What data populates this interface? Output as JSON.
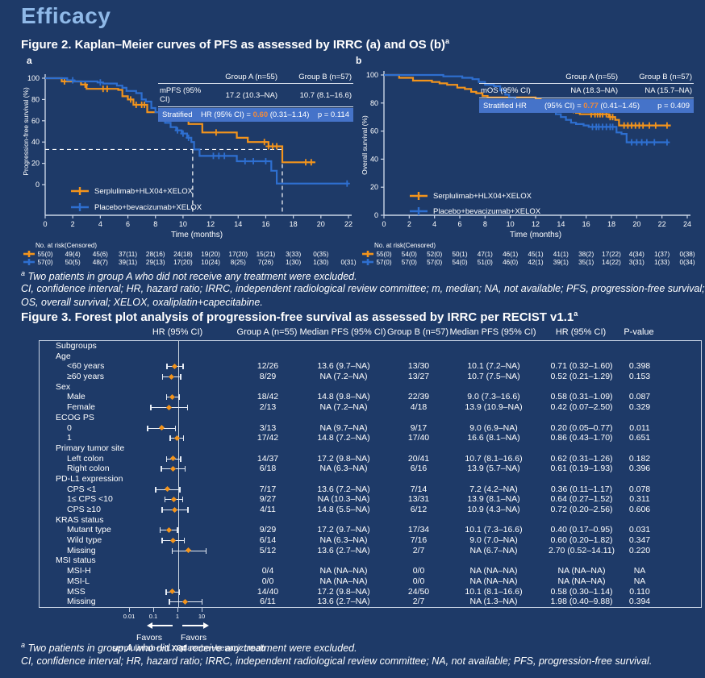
{
  "page": {
    "title": "Efficacy"
  },
  "figure2": {
    "heading": "Figure 2. Kaplan–Meier curves of PFS as assessed by IRRC (a) and OS (b)",
    "heading_sup": "a",
    "panels": [
      {
        "letter": "a",
        "stats": {
          "header_a": "Group A (n=55)",
          "header_b": "Group B (n=57)",
          "label": "mPFS (95% CI)",
          "value_a": "17.2 (10.3–NA)",
          "value_b": "10.7 (8.1–16.6)",
          "strat_prefix": "Stratified",
          "strat_mid": "HR (95% CI) =",
          "hr": "0.60",
          "ci": "(0.31–1.14)",
          "p": "p = 0.114"
        }
      },
      {
        "letter": "b",
        "stats": {
          "header_a": "Group A (n=55)",
          "header_b": "Group B (n=57)",
          "label": "mOS (95% CI)",
          "value_a": "NA (18.3–NA)",
          "value_b": "NA (15.7–NA)",
          "strat_prefix": "Stratified HR",
          "strat_mid": "(95% CI) =",
          "hr": "0.77",
          "ci": "(0.41–1.45)",
          "p": "p = 0.409"
        }
      }
    ],
    "footnote1_sup": "a",
    "footnote1": " Two patients in group A who did not receive any treatment were excluded.",
    "footnote2": "CI, confidence interval; HR, hazard ratio; IRRC, independent radiological review committee; m, median; NA, not available; PFS, progression-free survival;",
    "footnote3": "OS, overall survival; XELOX, oxaliplatin+capecitabine."
  },
  "figure3": {
    "heading": "Figure 3. Forest plot analysis of progression-free survival as assessed by IRRC per RECIST v1.1",
    "heading_sup": "a",
    "columns": [
      "HR (95% CI)",
      "Group A (n=55)",
      "Median PFS (95% CI)",
      "Group B (n=57)",
      "Median PFS (95% CI)",
      "HR (95% CI)",
      "P-value"
    ],
    "favors_left": [
      "Favors",
      "serplulimab+HLX04"
    ],
    "favors_right": [
      "Favors",
      "placebo+bevacizumab"
    ],
    "footnote1_sup": "a",
    "footnote1": " Two patients in group A who did not receive any treatment were excluded.",
    "footnote2": "CI, confidence interval; HR, hazard ratio; IRRC, independent radiological review committee; NA, not available; PFS, progression-free survival."
  },
  "chart_data": [
    {
      "id": "km_pfs",
      "type": "line",
      "subtype": "kaplan-meier-step",
      "title": "a",
      "ylabel": "Progression-free survival (%)",
      "xlabel": "Time (months)",
      "xlim": [
        0,
        22
      ],
      "ylim": [
        0,
        100
      ],
      "xticks": [
        0,
        2,
        4,
        6,
        8,
        10,
        12,
        14,
        16,
        18,
        20,
        22
      ],
      "yticks": [
        0,
        20,
        40,
        60,
        80,
        100
      ],
      "medians": {
        "y": 33,
        "x_max": 17.2,
        "x_vertical": [
          10.7,
          17.2
        ]
      },
      "series": [
        {
          "name": "Serplulimab+HLX04+XELOX",
          "color": "#f3941c",
          "points": [
            [
              0,
              100
            ],
            [
              1.2,
              97
            ],
            [
              2.6,
              94
            ],
            [
              3.0,
              90
            ],
            [
              5.3,
              89
            ],
            [
              5.6,
              83
            ],
            [
              6.0,
              80
            ],
            [
              6.4,
              75
            ],
            [
              7.4,
              68
            ],
            [
              9.8,
              62
            ],
            [
              10.4,
              57
            ],
            [
              11.4,
              49
            ],
            [
              13.9,
              44
            ],
            [
              14.7,
              40
            ],
            [
              16.2,
              36
            ],
            [
              17.2,
              21
            ],
            [
              19.6,
              21
            ]
          ],
          "censors": [
            1.4,
            2.9,
            4.2,
            4.5,
            6.2,
            6.6,
            7.0,
            7.2,
            8.4,
            8.7,
            9.0,
            9.3,
            12.4,
            15.9,
            16.2,
            16.5,
            16.8,
            18.9,
            19.3
          ]
        },
        {
          "name": "Placebo+bevacizumab+XELOX",
          "color": "#2e6fd0",
          "points": [
            [
              0,
              100
            ],
            [
              1.6,
              98
            ],
            [
              2.1,
              97
            ],
            [
              3.8,
              96
            ],
            [
              4.2,
              95
            ],
            [
              5.2,
              93
            ],
            [
              5.6,
              91
            ],
            [
              5.9,
              88
            ],
            [
              6.6,
              86
            ],
            [
              7.0,
              80
            ],
            [
              7.3,
              78
            ],
            [
              7.7,
              72
            ],
            [
              8.0,
              68
            ],
            [
              8.3,
              62
            ],
            [
              8.7,
              58
            ],
            [
              9.1,
              54
            ],
            [
              9.5,
              51
            ],
            [
              9.9,
              48
            ],
            [
              10.3,
              44
            ],
            [
              10.6,
              40
            ],
            [
              10.8,
              33
            ],
            [
              11.2,
              27
            ],
            [
              13.9,
              22
            ],
            [
              16.4,
              13
            ],
            [
              16.8,
              1
            ],
            [
              22.0,
              1
            ]
          ],
          "censors": [
            2.0,
            4.0,
            8.6,
            9.6,
            10.0,
            10.4,
            12.2,
            12.6,
            13.0,
            14.5,
            15.1,
            16.0,
            21.9
          ]
        }
      ],
      "risk_table": {
        "label": "No. at risk(Censored)",
        "rows": [
          {
            "color": "#f3941c",
            "values": [
              "55(0)",
              "49(4)",
              "45(6)",
              "37(11)",
              "28(16)",
              "24(18)",
              "19(20)",
              "17(20)",
              "15(21)",
              "3(33)",
              "0(35)"
            ]
          },
          {
            "color": "#2e6fd0",
            "values": [
              "57(0)",
              "50(5)",
              "48(7)",
              "39(11)",
              "29(13)",
              "17(20)",
              "10(24)",
              "8(25)",
              "7(26)",
              "1(30)",
              "1(30)",
              "0(31)"
            ]
          }
        ]
      }
    },
    {
      "id": "km_os",
      "type": "line",
      "subtype": "kaplan-meier-step",
      "title": "b",
      "ylabel": "Overall survival  (%)",
      "xlabel": "Time (months)",
      "xlim": [
        0,
        24
      ],
      "ylim": [
        0,
        100
      ],
      "xticks": [
        0,
        2,
        4,
        6,
        8,
        10,
        12,
        14,
        16,
        18,
        20,
        22,
        24
      ],
      "yticks": [
        0,
        20,
        40,
        60,
        80,
        100
      ],
      "medians": null,
      "series": [
        {
          "name": "Serplulimab+HLX04+XELOX",
          "color": "#f3941c",
          "points": [
            [
              0,
              100
            ],
            [
              1.2,
              98
            ],
            [
              2.3,
              96
            ],
            [
              3.8,
              95
            ],
            [
              4.4,
              94
            ],
            [
              5.0,
              93
            ],
            [
              5.8,
              91
            ],
            [
              6.4,
              90
            ],
            [
              6.9,
              88
            ],
            [
              7.3,
              87
            ],
            [
              7.8,
              85
            ],
            [
              8.2,
              84
            ],
            [
              12.0,
              83
            ],
            [
              12.4,
              80
            ],
            [
              12.8,
              78
            ],
            [
              13.2,
              76
            ],
            [
              14.9,
              75
            ],
            [
              15.2,
              73
            ],
            [
              15.5,
              72
            ],
            [
              17.8,
              70
            ],
            [
              18.3,
              68
            ],
            [
              18.6,
              64
            ],
            [
              22.7,
              64
            ]
          ],
          "censors": [
            14.3,
            15.0,
            16.4,
            16.7,
            16.9,
            17.1,
            17.3,
            17.6,
            17.9,
            18.1,
            19.0,
            19.3,
            19.6,
            19.9,
            20.2,
            20.5,
            21.0,
            21.5,
            22.4
          ]
        },
        {
          "name": "Placebo+bevacizumab+XELOX",
          "color": "#2e6fd0",
          "points": [
            [
              0,
              100
            ],
            [
              4.7,
              99
            ],
            [
              6.2,
              98
            ],
            [
              7.0,
              97
            ],
            [
              7.5,
              95
            ],
            [
              8.0,
              93
            ],
            [
              8.7,
              92
            ],
            [
              9.2,
              89
            ],
            [
              9.6,
              86
            ],
            [
              9.9,
              84
            ],
            [
              10.4,
              82
            ],
            [
              11.0,
              80
            ],
            [
              11.6,
              78
            ],
            [
              12.1,
              77
            ],
            [
              12.6,
              76
            ],
            [
              13.1,
              74
            ],
            [
              13.6,
              72
            ],
            [
              14.0,
              70
            ],
            [
              14.4,
              68
            ],
            [
              14.8,
              66
            ],
            [
              15.2,
              65
            ],
            [
              15.8,
              64
            ],
            [
              16.2,
              63
            ],
            [
              18.4,
              59
            ],
            [
              18.8,
              58
            ],
            [
              19.2,
              52
            ],
            [
              22.5,
              52
            ]
          ],
          "censors": [
            16.5,
            16.8,
            17.0,
            17.3,
            17.6,
            17.9,
            18.1,
            19.6,
            20.0,
            20.4,
            20.8,
            21.4,
            22.4
          ]
        }
      ],
      "risk_table": {
        "label": "No. at risk(Censored)",
        "rows": [
          {
            "color": "#f3941c",
            "values": [
              "55(0)",
              "54(0)",
              "52(0)",
              "50(1)",
              "47(1)",
              "46(1)",
              "45(1)",
              "41(1)",
              "38(2)",
              "17(22)",
              "4(34)",
              "1(37)",
              "0(38)"
            ]
          },
          {
            "color": "#2e6fd0",
            "values": [
              "57(0)",
              "57(0)",
              "57(0)",
              "54(0)",
              "51(0)",
              "46(0)",
              "42(1)",
              "39(1)",
              "35(1)",
              "14(22)",
              "3(31)",
              "1(33)",
              "0(34)"
            ]
          }
        ]
      }
    },
    {
      "id": "forest_pfs",
      "type": "scatter",
      "subtype": "forest-plot",
      "xscale": "log",
      "ticks": [
        0.01,
        0.1,
        1,
        10
      ],
      "rows": [
        {
          "label": "Subgroups",
          "header": true
        },
        {
          "label": "Age",
          "header": true
        },
        {
          "label": "<60 years",
          "ga": "12/26",
          "ma": "13.6 (9.7–NA)",
          "gb": "13/30",
          "mb": "10.1 (7.2–NA)",
          "hr_text": "0.71 (0.32–1.60)",
          "p": "0.398",
          "hr": 0.71,
          "lo": 0.32,
          "hi": 1.6
        },
        {
          "label": "≥60 years",
          "ga": "8/29",
          "ma": "NA (7.2–NA)",
          "gb": "13/27",
          "mb": "10.7 (7.5–NA)",
          "hr_text": "0.52 (0.21–1.29)",
          "p": "0.153",
          "hr": 0.52,
          "lo": 0.21,
          "hi": 1.29
        },
        {
          "label": "Sex",
          "header": true
        },
        {
          "label": "Male",
          "ga": "18/42",
          "ma": "14.8 (9.8–NA)",
          "gb": "22/39",
          "mb": "9.0 (7.3–16.6)",
          "hr_text": "0.58 (0.31–1.09)",
          "p": "0.087",
          "hr": 0.58,
          "lo": 0.31,
          "hi": 1.09
        },
        {
          "label": "Female",
          "ga": "2/13",
          "ma": "NA (7.2–NA)",
          "gb": "4/18",
          "mb": "13.9 (10.9–NA)",
          "hr_text": "0.42 (0.07–2.50)",
          "p": "0.329",
          "hr": 0.42,
          "lo": 0.07,
          "hi": 2.5
        },
        {
          "label": "ECOG PS",
          "header": true
        },
        {
          "label": "0",
          "ga": "3/13",
          "ma": "NA (9.7–NA)",
          "gb": "9/17",
          "mb": "9.0 (6.9–NA)",
          "hr_text": "0.20 (0.05–0.77)",
          "p": "0.011",
          "hr": 0.2,
          "lo": 0.05,
          "hi": 0.77
        },
        {
          "label": "1",
          "ga": "17/42",
          "ma": "14.8 (7.2–NA)",
          "gb": "17/40",
          "mb": "16.6 (8.1–NA)",
          "hr_text": "0.86 (0.43–1.70)",
          "p": "0.651",
          "hr": 0.86,
          "lo": 0.43,
          "hi": 1.7
        },
        {
          "label": "Primary tumor site",
          "header": true
        },
        {
          "label": "Left colon",
          "ga": "14/37",
          "ma": "17.2 (9.8–NA)",
          "gb": "20/41",
          "mb": "10.7 (8.1–16.6)",
          "hr_text": "0.62 (0.31–1.26)",
          "p": "0.182",
          "hr": 0.62,
          "lo": 0.31,
          "hi": 1.26
        },
        {
          "label": "Right colon",
          "ga": "6/18",
          "ma": "NA (6.3–NA)",
          "gb": "6/16",
          "mb": "13.9 (5.7–NA)",
          "hr_text": "0.61 (0.19–1.93)",
          "p": "0.396",
          "hr": 0.61,
          "lo": 0.19,
          "hi": 1.93
        },
        {
          "label": "PD-L1 expression",
          "header": true
        },
        {
          "label": "CPS <1",
          "ga": "7/17",
          "ma": "13.6 (7.2–NA)",
          "gb": "7/14",
          "mb": "7.2 (4.2–NA)",
          "hr_text": "0.36 (0.11–1.17)",
          "p": "0.078",
          "hr": 0.36,
          "lo": 0.11,
          "hi": 1.17
        },
        {
          "label": "1≤ CPS <10",
          "ga": "9/27",
          "ma": "NA (10.3–NA)",
          "gb": "13/31",
          "mb": "13.9 (8.1–NA)",
          "hr_text": "0.64 (0.27–1.52)",
          "p": "0.311",
          "hr": 0.64,
          "lo": 0.27,
          "hi": 1.52
        },
        {
          "label": "CPS ≥10",
          "ga": "4/11",
          "ma": "14.8 (5.5–NA)",
          "gb": "6/12",
          "mb": "10.9 (4.3–NA)",
          "hr_text": "0.72 (0.20–2.56)",
          "p": "0.606",
          "hr": 0.72,
          "lo": 0.2,
          "hi": 2.56
        },
        {
          "label": "KRAS status",
          "header": true
        },
        {
          "label": "Mutant type",
          "ga": "9/29",
          "ma": "17.2 (9.7–NA)",
          "gb": "17/34",
          "mb": "10.1 (7.3–16.6)",
          "hr_text": "0.40 (0.17–0.95)",
          "p": "0.031",
          "hr": 0.4,
          "lo": 0.17,
          "hi": 0.95
        },
        {
          "label": "Wild type",
          "ga": "6/14",
          "ma": "NA (6.3–NA)",
          "gb": "7/16",
          "mb": "9.0 (7.0–NA)",
          "hr_text": "0.60 (0.20–1.82)",
          "p": "0.347",
          "hr": 0.6,
          "lo": 0.2,
          "hi": 1.82
        },
        {
          "label": "Missing",
          "ga": "5/12",
          "ma": "13.6 (2.7–NA)",
          "gb": "2/7",
          "mb": "NA (6.7–NA)",
          "hr_text": "2.70 (0.52–14.11)",
          "p": "0.220",
          "hr": 2.7,
          "lo": 0.52,
          "hi": 14.11
        },
        {
          "label": "MSI status",
          "header": true
        },
        {
          "label": "MSI-H",
          "ga": "0/4",
          "ma": "NA (NA–NA)",
          "gb": "0/0",
          "mb": "NA (NA–NA)",
          "hr_text": "NA (NA–NA)",
          "p": "NA",
          "hr": null,
          "lo": null,
          "hi": null
        },
        {
          "label": "MSI-L",
          "ga": "0/0",
          "ma": "NA (NA–NA)",
          "gb": "0/0",
          "mb": "NA (NA–NA)",
          "hr_text": "NA (NA–NA)",
          "p": "NA",
          "hr": null,
          "lo": null,
          "hi": null
        },
        {
          "label": "MSS",
          "ga": "14/40",
          "ma": "17.2 (9.8–NA)",
          "gb": "24/50",
          "mb": "10.1 (8.1–16.6)",
          "hr_text": "0.58 (0.30–1.14)",
          "p": "0.110",
          "hr": 0.58,
          "lo": 0.3,
          "hi": 1.14
        },
        {
          "label": "Missing",
          "ga": "6/11",
          "ma": "13.6 (2.7–NA)",
          "gb": "2/7",
          "mb": "NA (1.3–NA)",
          "hr_text": "1.98 (0.40–9.88)",
          "p": "0.394",
          "hr": 1.98,
          "lo": 0.4,
          "hi": 9.88
        }
      ]
    }
  ]
}
